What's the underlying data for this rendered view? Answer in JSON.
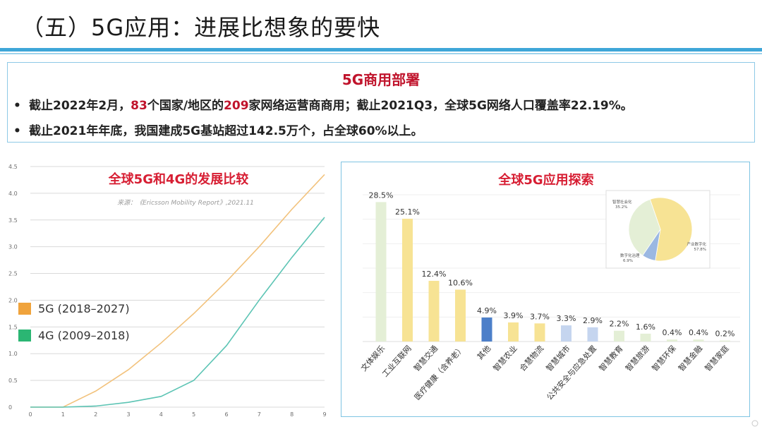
{
  "slide": {
    "title": "（五）5G应用：进展比想象的要快"
  },
  "info": {
    "title": "5G商用部署",
    "bullet1": {
      "p1": "截止2022年2月，",
      "countries": "83",
      "p2": "个国家/地区的",
      "operators": "209",
      "p3": "家网络运营商商用；截止2021Q3，全球5G网络人口覆盖率22.19%。"
    },
    "bullet2": "截止2021年年底，我国建成5G基站超过142.5万个，占全球60%以上。"
  },
  "bullet_glyph": "•",
  "colors": {
    "accent_red": "#c0142c",
    "rule_blue": "#3ea6d8",
    "series_5g": "#f0a33c",
    "series_4g": "#2bb673"
  },
  "chart_data": [
    {
      "type": "line",
      "title": "全球5G和4G的发展比较",
      "annotation": "来源：《Ericsson Mobility Report》,2021.11",
      "x": [
        0,
        1,
        2,
        3,
        4,
        5,
        6,
        7,
        8,
        9
      ],
      "ylim": [
        0,
        4.5
      ],
      "yticks": [
        "0",
        "0.5",
        "1.0",
        "1.5",
        "2.0",
        "2.5",
        "3.0",
        "3.5",
        "4.0",
        "4.5"
      ],
      "xticks": [
        "0",
        "1",
        "2",
        "3",
        "4",
        "5",
        "6",
        "7",
        "8",
        "9"
      ],
      "grid": true,
      "legend_position": "middle-left",
      "series": [
        {
          "name": "5G (2018–2027)",
          "color": "#f0a33c",
          "line_color": "#f2c27c",
          "values": [
            0,
            0,
            0.3,
            0.7,
            1.2,
            1.75,
            2.35,
            3.0,
            3.7,
            4.35
          ]
        },
        {
          "name": "4G (2009–2018)",
          "color": "#2bb673",
          "line_color": "#5cc4b4",
          "values": [
            0,
            0,
            0.02,
            0.09,
            0.2,
            0.5,
            1.15,
            2.0,
            2.8,
            3.55
          ]
        }
      ]
    },
    {
      "type": "bar",
      "title": "全球5G应用探索",
      "categories": [
        "文体娱乐",
        "工业互联网",
        "智慧交通",
        "医疗健康（含养老）",
        "其他",
        "智慧农业",
        "合慧物流",
        "智慧城市",
        "公共安全与应急处置",
        "智慧教育",
        "智慧旅游",
        "智慧环保",
        "智慧金融",
        "智慧家庭"
      ],
      "values": [
        28.5,
        25.1,
        12.4,
        10.6,
        4.9,
        3.9,
        3.7,
        3.3,
        2.9,
        2.2,
        1.6,
        0.4,
        0.4,
        0.2
      ],
      "value_labels": [
        "28.5%",
        "25.1%",
        "12.4%",
        "10.6%",
        "4.9%",
        "3.9%",
        "3.7%",
        "3.3%",
        "2.9%",
        "2.2%",
        "1.6%",
        "0.4%",
        "0.4%",
        "0.2%"
      ],
      "colors": [
        "#e4efd6",
        "#f7e394",
        "#f7e394",
        "#f7e394",
        "#4c7fc9",
        "#f7e394",
        "#f7e394",
        "#c5d5ef",
        "#c5d5ef",
        "#e4efd6",
        "#e4efd6",
        "#e4efd6",
        "#e4efd6",
        "#e4efd6"
      ],
      "ylim": [
        0,
        30
      ],
      "grid": true
    },
    {
      "type": "pie",
      "labels": [
        "智慧社会化\n35.2%",
        "产业数字化\n57.8%",
        "数字化治理\n6.9%"
      ],
      "values": [
        35.2,
        57.8,
        6.9
      ],
      "colors": [
        "#e4efd6",
        "#f7e394",
        "#9bb8e2"
      ]
    }
  ]
}
